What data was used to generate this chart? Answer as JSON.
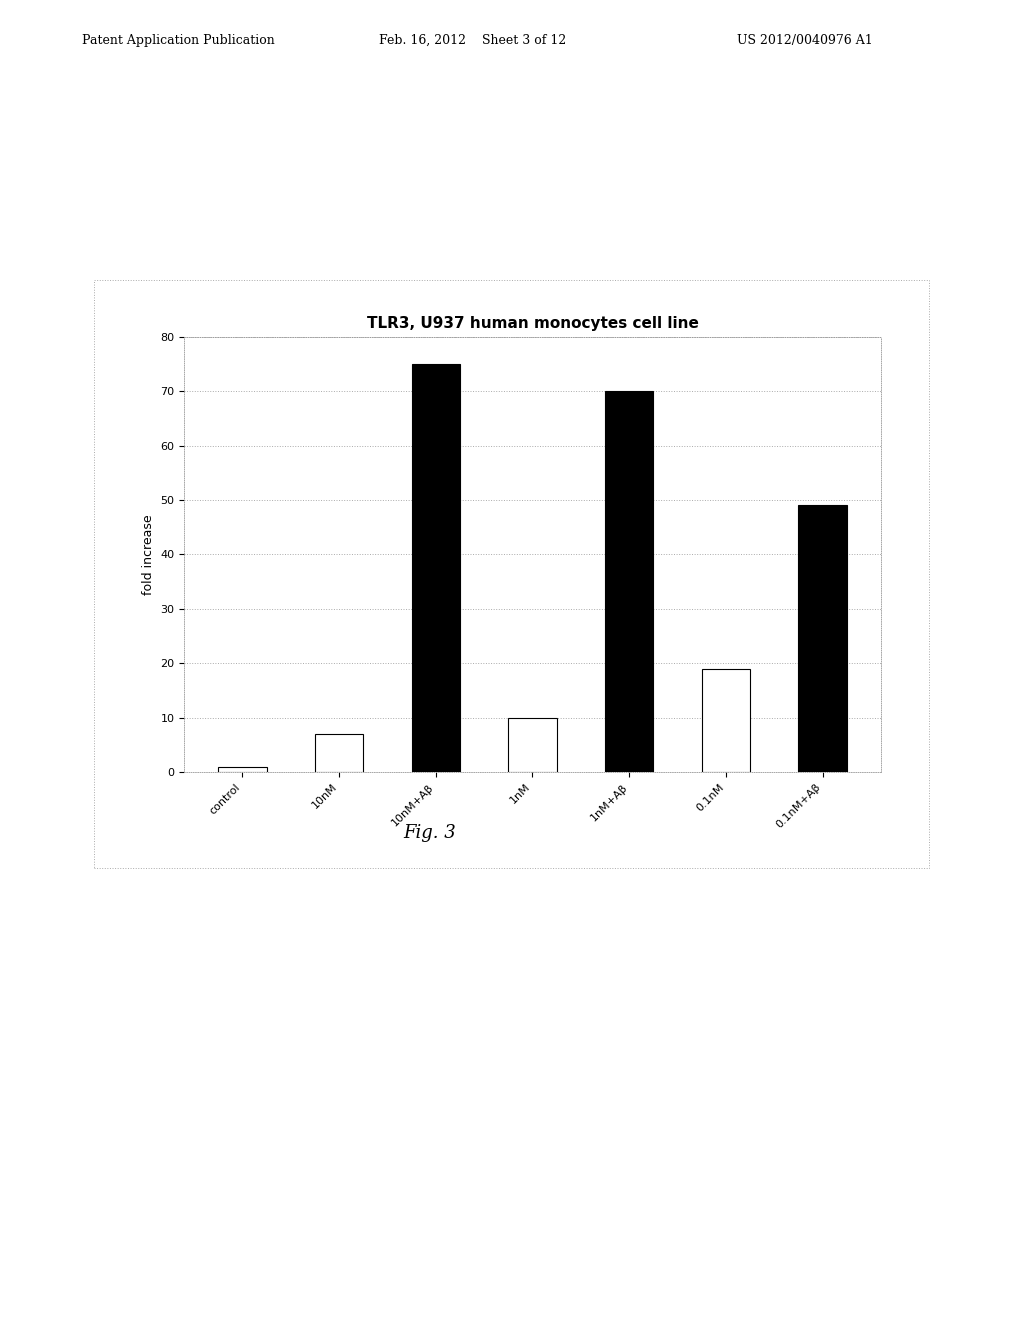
{
  "title": "TLR3, U937 human monocytes cell line",
  "ylabel": "fold increase",
  "categories": [
    "control",
    "10nM",
    "10nM+Aβ",
    "1nM",
    "1nM+Aβ",
    "0.1nM",
    "0.1nM+Aβ"
  ],
  "values": [
    1,
    7,
    75,
    10,
    70,
    19,
    49
  ],
  "bar_colors": [
    "white",
    "white",
    "black",
    "white",
    "black",
    "white",
    "black"
  ],
  "bar_edge_colors": [
    "black",
    "black",
    "black",
    "black",
    "black",
    "black",
    "black"
  ],
  "ylim": [
    0,
    80
  ],
  "yticks": [
    0,
    10,
    20,
    30,
    40,
    50,
    60,
    70,
    80
  ],
  "background_color": "#ffffff",
  "chart_bg": "#ffffff",
  "grid_color": "#aaaaaa",
  "title_fontsize": 11,
  "axis_fontsize": 9,
  "tick_fontsize": 8,
  "xlabel_rotation": 45,
  "fig_caption": "Fig. 3",
  "header_left": "Patent Application Publication",
  "header_center": "Feb. 16, 2012    Sheet 3 of 12",
  "header_right": "US 2012/0040976 A1"
}
